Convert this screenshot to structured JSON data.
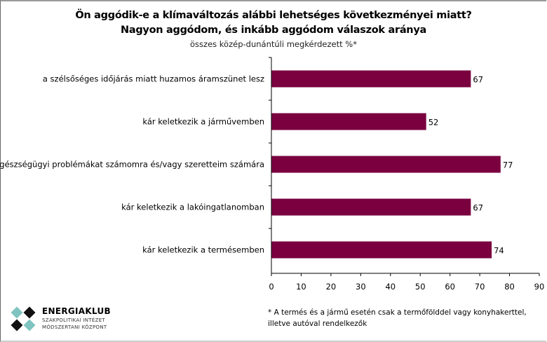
{
  "chart_data": {
    "type": "bar",
    "orientation": "horizontal",
    "title": "Ön aggódik-e a klímaváltozás alábbi lehetséges következményei miatt? Nagyon aggódom, és inkább aggódom válaszok aránya",
    "subtitle": "összes közép-dunántúli megkérdezett %*",
    "categories": [
      "a szélsőséges időjárás miatt huzamos áramszünet lesz",
      "kár keletkezik a járművemben",
      "egészségügyi problémákat számomra és/vagy szeretteim számára",
      "kár keletkezik a lakóingatlanomban",
      "kár keletkezik a termésemben"
    ],
    "values": [
      67,
      52,
      77,
      67,
      74
    ],
    "xlim": [
      0,
      90
    ],
    "xticks": [
      "0",
      "10",
      "20",
      "30",
      "40",
      "50",
      "60",
      "70",
      "80",
      "90"
    ],
    "xlabel": "",
    "ylabel": "",
    "bar_color": "#7a0040",
    "grid": false
  },
  "footer": {
    "brand": "ENERGIAKLUB",
    "brand_line1": "SZAKPOLITIKAI INTÉZET",
    "brand_line2": "MÓDSZERTANI KÖZPONT",
    "note": "* A termés és a jármű esetén csak a termőfölddel vagy konyhakerttel, illetve autóval rendelkezők"
  }
}
